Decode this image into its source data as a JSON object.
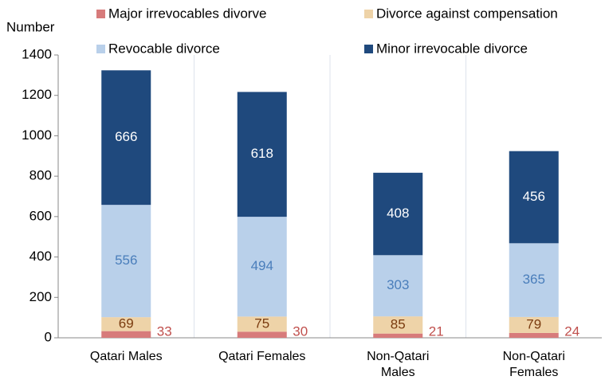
{
  "chart_data": {
    "type": "stacked_bar",
    "y_axis_label": "Number",
    "categories": [
      "Qatari Males",
      "Qatari Females",
      "Non-Qatari Males",
      "Non-Qatari Females"
    ],
    "series": [
      {
        "name": "Major irrevocables divorve",
        "color": "#d77b7b",
        "label_color": "#c0504d",
        "values": [
          33,
          30,
          21,
          24
        ]
      },
      {
        "name": "Divorce against compensation",
        "color": "#eed3a8",
        "label_color": "#7a3b0f",
        "values": [
          69,
          75,
          85,
          79
        ]
      },
      {
        "name": "Revocable divorce",
        "color": "#b9d0ea",
        "label_color": "#4a7ebb",
        "values": [
          556,
          494,
          303,
          365
        ]
      },
      {
        "name": "Minor irrevocable divorce",
        "color": "#1f497d",
        "label_color": "#ffffff",
        "values": [
          666,
          618,
          408,
          456
        ]
      }
    ],
    "ylim": [
      0,
      1400
    ],
    "yticks": [
      0,
      200,
      400,
      600,
      800,
      1000,
      1200,
      1400
    ]
  }
}
